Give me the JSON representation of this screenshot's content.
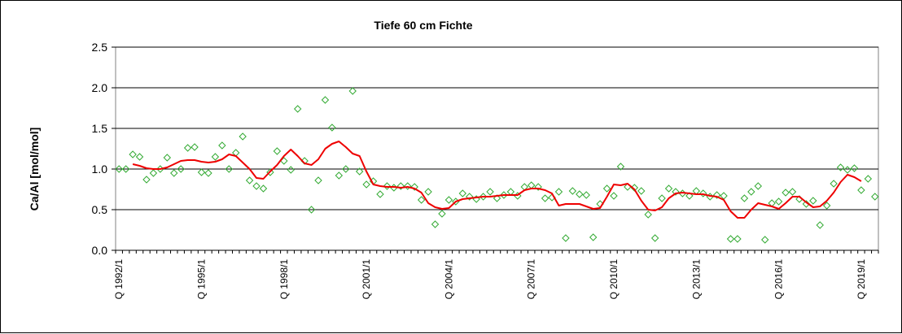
{
  "chart_data": {
    "type": "line",
    "title": "Tiefe  60 cm    Fichte",
    "xlabel": "",
    "ylabel": "Ca/Al [mol/mol]",
    "ylim": [
      0,
      2.5
    ],
    "yticks": [
      "0.0",
      "0.5",
      "1.0",
      "1.5",
      "2.0",
      "2.5"
    ],
    "x_start": "Q 1992/1",
    "x_step": "quarter",
    "xtick_labels": [
      "Q 1992/1",
      "Q 1995/1",
      "Q 1998/1",
      "Q 2001/1",
      "Q 2004/1",
      "Q 2007/1",
      "Q 2010/1",
      "Q 2013/1",
      "Q 2016/1",
      "Q 2019/1"
    ],
    "xtick_quarter_index": [
      0,
      12,
      24,
      36,
      48,
      60,
      72,
      84,
      96,
      108
    ],
    "grid": "horizontal",
    "legend": "none",
    "colors": {
      "measured": "#33aa33",
      "smoothed": "#ee0000",
      "grid": "#000000",
      "plot_border": "#808080"
    },
    "series": [
      {
        "style": "diamond-markers",
        "points": [
          [
            0,
            1.0
          ],
          [
            1,
            1.0
          ],
          [
            2,
            1.18
          ],
          [
            3,
            1.15
          ],
          [
            4,
            0.87
          ],
          [
            5,
            0.95
          ],
          [
            6,
            1.0
          ],
          [
            7,
            1.14
          ],
          [
            8,
            0.95
          ],
          [
            9,
            1.0
          ],
          [
            10,
            1.26
          ],
          [
            11,
            1.27
          ],
          [
            12,
            0.96
          ],
          [
            13,
            0.95
          ],
          [
            14,
            1.15
          ],
          [
            15,
            1.29
          ],
          [
            16,
            1.0
          ],
          [
            17,
            1.2
          ],
          [
            18,
            1.4
          ],
          [
            19,
            0.86
          ],
          [
            20,
            0.79
          ],
          [
            21,
            0.76
          ],
          [
            22,
            0.96
          ],
          [
            23,
            1.22
          ],
          [
            24,
            1.1
          ],
          [
            25,
            0.99
          ],
          [
            26,
            1.74
          ],
          [
            27,
            1.1
          ],
          [
            28,
            0.5
          ],
          [
            29,
            0.86
          ],
          [
            30,
            1.85
          ],
          [
            31,
            1.51
          ],
          [
            32,
            0.92
          ],
          [
            33,
            1.0
          ],
          [
            34,
            1.96
          ],
          [
            35,
            0.97
          ],
          [
            36,
            0.81
          ],
          [
            37,
            0.85
          ],
          [
            38,
            0.69
          ],
          [
            39,
            0.79
          ],
          [
            40,
            0.77
          ],
          [
            41,
            0.79
          ],
          [
            42,
            0.79
          ],
          [
            43,
            0.78
          ],
          [
            44,
            0.62
          ],
          [
            45,
            0.72
          ],
          [
            46,
            0.32
          ],
          [
            47,
            0.45
          ],
          [
            48,
            0.62
          ],
          [
            49,
            0.6
          ],
          [
            50,
            0.7
          ],
          [
            51,
            0.66
          ],
          [
            52,
            0.63
          ],
          [
            53,
            0.66
          ],
          [
            54,
            0.72
          ],
          [
            55,
            0.64
          ],
          [
            56,
            0.68
          ],
          [
            57,
            0.72
          ],
          [
            58,
            0.67
          ],
          [
            59,
            0.78
          ],
          [
            60,
            0.8
          ],
          [
            61,
            0.78
          ],
          [
            62,
            0.64
          ],
          [
            63,
            0.65
          ],
          [
            64,
            0.72
          ],
          [
            65,
            0.15
          ],
          [
            66,
            0.73
          ],
          [
            67,
            0.69
          ],
          [
            68,
            0.68
          ],
          [
            69,
            0.16
          ],
          [
            70,
            0.57
          ],
          [
            71,
            0.76
          ],
          [
            72,
            0.67
          ],
          [
            73,
            1.03
          ],
          [
            74,
            0.78
          ],
          [
            75,
            0.77
          ],
          [
            76,
            0.73
          ],
          [
            77,
            0.44
          ],
          [
            78,
            0.15
          ],
          [
            79,
            0.64
          ],
          [
            80,
            0.76
          ],
          [
            81,
            0.72
          ],
          [
            82,
            0.7
          ],
          [
            83,
            0.67
          ],
          [
            84,
            0.73
          ],
          [
            85,
            0.7
          ],
          [
            86,
            0.66
          ],
          [
            87,
            0.68
          ],
          [
            88,
            0.67
          ],
          [
            89,
            0.14
          ],
          [
            90,
            0.14
          ],
          [
            91,
            0.64
          ],
          [
            92,
            0.72
          ],
          [
            93,
            0.79
          ],
          [
            94,
            0.13
          ],
          [
            95,
            0.58
          ],
          [
            96,
            0.6
          ],
          [
            97,
            0.71
          ],
          [
            98,
            0.72
          ],
          [
            99,
            0.63
          ],
          [
            100,
            0.57
          ],
          [
            101,
            0.61
          ],
          [
            102,
            0.31
          ],
          [
            103,
            0.55
          ],
          [
            104,
            0.82
          ],
          [
            105,
            1.02
          ],
          [
            106,
            0.99
          ],
          [
            107,
            1.01
          ],
          [
            108,
            0.74
          ],
          [
            109,
            0.88
          ],
          [
            110,
            0.66
          ]
        ]
      },
      {
        "style": "line",
        "points": [
          [
            2,
            1.06
          ],
          [
            3,
            1.04
          ],
          [
            4,
            1.01
          ],
          [
            5,
            1.0
          ],
          [
            6,
            1.0
          ],
          [
            7,
            1.02
          ],
          [
            8,
            1.06
          ],
          [
            9,
            1.1
          ],
          [
            10,
            1.11
          ],
          [
            11,
            1.11
          ],
          [
            12,
            1.09
          ],
          [
            13,
            1.08
          ],
          [
            14,
            1.09
          ],
          [
            15,
            1.12
          ],
          [
            16,
            1.18
          ],
          [
            17,
            1.16
          ],
          [
            18,
            1.08
          ],
          [
            19,
            1.0
          ],
          [
            20,
            0.89
          ],
          [
            21,
            0.88
          ],
          [
            22,
            0.97
          ],
          [
            23,
            1.05
          ],
          [
            24,
            1.16
          ],
          [
            25,
            1.24
          ],
          [
            26,
            1.16
          ],
          [
            27,
            1.07
          ],
          [
            28,
            1.05
          ],
          [
            29,
            1.12
          ],
          [
            30,
            1.25
          ],
          [
            31,
            1.31
          ],
          [
            32,
            1.34
          ],
          [
            33,
            1.27
          ],
          [
            34,
            1.19
          ],
          [
            35,
            1.16
          ],
          [
            36,
            0.97
          ],
          [
            37,
            0.81
          ],
          [
            38,
            0.79
          ],
          [
            39,
            0.78
          ],
          [
            40,
            0.78
          ],
          [
            41,
            0.77
          ],
          [
            42,
            0.78
          ],
          [
            43,
            0.76
          ],
          [
            44,
            0.71
          ],
          [
            45,
            0.58
          ],
          [
            46,
            0.53
          ],
          [
            47,
            0.51
          ],
          [
            48,
            0.52
          ],
          [
            49,
            0.6
          ],
          [
            50,
            0.63
          ],
          [
            51,
            0.64
          ],
          [
            52,
            0.65
          ],
          [
            53,
            0.66
          ],
          [
            54,
            0.66
          ],
          [
            55,
            0.67
          ],
          [
            56,
            0.68
          ],
          [
            57,
            0.68
          ],
          [
            58,
            0.68
          ],
          [
            59,
            0.74
          ],
          [
            60,
            0.76
          ],
          [
            61,
            0.76
          ],
          [
            62,
            0.74
          ],
          [
            63,
            0.7
          ],
          [
            64,
            0.55
          ],
          [
            65,
            0.57
          ],
          [
            66,
            0.57
          ],
          [
            67,
            0.57
          ],
          [
            68,
            0.54
          ],
          [
            69,
            0.51
          ],
          [
            70,
            0.52
          ],
          [
            71,
            0.66
          ],
          [
            72,
            0.81
          ],
          [
            73,
            0.8
          ],
          [
            74,
            0.82
          ],
          [
            75,
            0.75
          ],
          [
            76,
            0.61
          ],
          [
            77,
            0.5
          ],
          [
            78,
            0.49
          ],
          [
            79,
            0.53
          ],
          [
            80,
            0.64
          ],
          [
            81,
            0.7
          ],
          [
            82,
            0.71
          ],
          [
            83,
            0.7
          ],
          [
            84,
            0.69
          ],
          [
            85,
            0.69
          ],
          [
            86,
            0.67
          ],
          [
            87,
            0.66
          ],
          [
            88,
            0.62
          ],
          [
            89,
            0.48
          ],
          [
            90,
            0.4
          ],
          [
            91,
            0.4
          ],
          [
            92,
            0.5
          ],
          [
            93,
            0.58
          ],
          [
            94,
            0.56
          ],
          [
            95,
            0.54
          ],
          [
            96,
            0.51
          ],
          [
            97,
            0.58
          ],
          [
            98,
            0.66
          ],
          [
            99,
            0.66
          ],
          [
            100,
            0.59
          ],
          [
            101,
            0.53
          ],
          [
            102,
            0.54
          ],
          [
            103,
            0.61
          ],
          [
            104,
            0.71
          ],
          [
            105,
            0.84
          ],
          [
            106,
            0.93
          ],
          [
            107,
            0.9
          ],
          [
            108,
            0.85
          ]
        ]
      }
    ]
  }
}
